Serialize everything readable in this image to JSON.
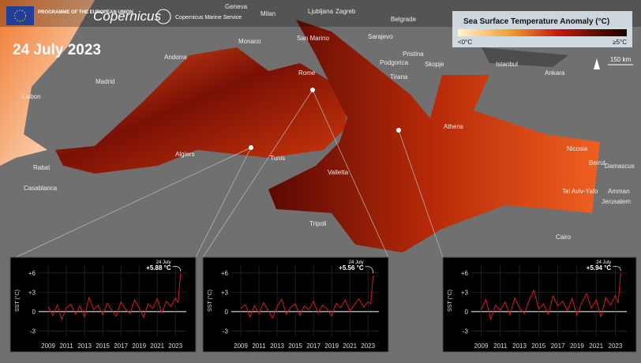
{
  "header": {
    "eu_programme": "PROGRAMME OF THE EUROPEAN UNION",
    "copernicus": "Copernicus",
    "marine_service": "Copernicus Marine Service"
  },
  "date": "24 July 2023",
  "legend": {
    "title": "Sea Surface Temperature Anomaly (°C)",
    "low_label": "<0°C",
    "high_label": "≥5°C"
  },
  "scale": "150 km",
  "map": {
    "cities": [
      "Geneva",
      "Milan",
      "Ljubljana",
      "Zagreb",
      "Belgrade",
      "Monaco",
      "San Marino",
      "Sarajevo",
      "Andorra",
      "Pristina",
      "Podgorica",
      "Skopje",
      "Tirana",
      "Rome",
      "Istanbul",
      "Ankara",
      "Madrid",
      "Lisbon",
      "Athens",
      "Nicosia",
      "Beirut",
      "Damascus",
      "Algiers",
      "Tunis",
      "Valletta",
      "Tel Aviv-Yafo",
      "Amman",
      "Jerusalem",
      "Rabat",
      "Casablanca",
      "Tripoli",
      "Cairo"
    ]
  },
  "chart_data": [
    {
      "type": "line",
      "y_label": "SST (°C)",
      "annotation_date": "24 July",
      "annotation_value": "+5.88 °C",
      "color": "#d7191c",
      "x": [
        2009,
        2009.5,
        2010,
        2010.5,
        2011,
        2011.5,
        2012,
        2012.5,
        2013,
        2013.5,
        2014,
        2014.5,
        2015,
        2015.5,
        2016,
        2016.5,
        2017,
        2017.5,
        2018,
        2018.5,
        2019,
        2019.5,
        2020,
        2020.5,
        2021,
        2021.5,
        2022,
        2022.5,
        2023,
        2023.3,
        2023.56
      ],
      "values": [
        0.8,
        -0.6,
        1.0,
        -1.2,
        0.6,
        1.1,
        -0.4,
        0.9,
        -0.8,
        2.2,
        0.3,
        1.0,
        -0.5,
        1.3,
        0.2,
        -0.7,
        1.5,
        0.4,
        -0.3,
        1.8,
        0.6,
        -0.9,
        1.2,
        0.5,
        2.0,
        -0.2,
        1.6,
        0.8,
        2.1,
        1.4,
        5.88
      ],
      "xlim": [
        2008.3,
        2024.2
      ],
      "ylim": [
        -3.8,
        7.2
      ],
      "xticks": [
        2009,
        2011,
        2013,
        2015,
        2017,
        2019,
        2021,
        2023
      ],
      "yticks": [
        {
          "value": 6,
          "label": "+6"
        },
        {
          "value": 3,
          "label": "+3"
        },
        0,
        -3
      ]
    },
    {
      "type": "line",
      "y_label": "SST (°C)",
      "annotation_date": "24 July",
      "annotation_value": "+5.56 °C",
      "color": "#d7191c",
      "x": [
        2009,
        2009.5,
        2010,
        2010.5,
        2011,
        2011.5,
        2012,
        2012.5,
        2013,
        2013.5,
        2014,
        2014.5,
        2015,
        2015.5,
        2016,
        2016.5,
        2017,
        2017.5,
        2018,
        2018.5,
        2019,
        2019.5,
        2020,
        2020.5,
        2021,
        2021.5,
        2022,
        2022.5,
        2023,
        2023.3,
        2023.56
      ],
      "values": [
        0.5,
        1.1,
        -0.8,
        0.9,
        -0.3,
        1.4,
        0.2,
        -1.0,
        0.8,
        1.9,
        -0.4,
        0.7,
        1.2,
        -0.6,
        0.9,
        0.3,
        1.6,
        -0.2,
        1.0,
        0.4,
        -0.7,
        1.3,
        0.6,
        1.8,
        0.1,
        1.1,
        2.0,
        0.7,
        1.5,
        1.2,
        5.56
      ],
      "xlim": [
        2008.3,
        2024.2
      ],
      "ylim": [
        -3.8,
        7.2
      ],
      "xticks": [
        2009,
        2011,
        2013,
        2015,
        2017,
        2019,
        2021,
        2023
      ],
      "yticks": [
        {
          "value": 6,
          "label": "+6"
        },
        {
          "value": 3,
          "label": "+3"
        },
        0,
        -3
      ]
    },
    {
      "type": "line",
      "y_label": "SST (°C)",
      "annotation_date": "24 July",
      "annotation_value": "+5.94 °C",
      "color": "#d7191c",
      "x": [
        2009,
        2009.5,
        2010,
        2010.5,
        2011,
        2011.5,
        2012,
        2012.5,
        2013,
        2013.5,
        2014,
        2014.5,
        2015,
        2015.5,
        2016,
        2016.5,
        2017,
        2017.5,
        2018,
        2018.5,
        2019,
        2019.5,
        2020,
        2020.5,
        2021,
        2021.5,
        2022,
        2022.5,
        2023,
        2023.3,
        2023.56
      ],
      "values": [
        0.3,
        1.9,
        -1.2,
        1.0,
        0.2,
        1.5,
        -0.5,
        2.1,
        0.6,
        -0.3,
        1.7,
        3.3,
        0.4,
        1.2,
        -0.4,
        2.4,
        0.9,
        1.6,
        0.2,
        2.0,
        -0.6,
        1.4,
        2.8,
        0.5,
        1.8,
        -0.8,
        2.2,
        1.0,
        2.5,
        1.3,
        5.94
      ],
      "xlim": [
        2008.3,
        2024.2
      ],
      "ylim": [
        -3.8,
        7.2
      ],
      "xticks": [
        2009,
        2011,
        2013,
        2015,
        2017,
        2019,
        2021,
        2023
      ],
      "yticks": [
        {
          "value": 6,
          "label": "+6"
        },
        {
          "value": 3,
          "label": "+3"
        },
        0,
        -3
      ]
    }
  ]
}
